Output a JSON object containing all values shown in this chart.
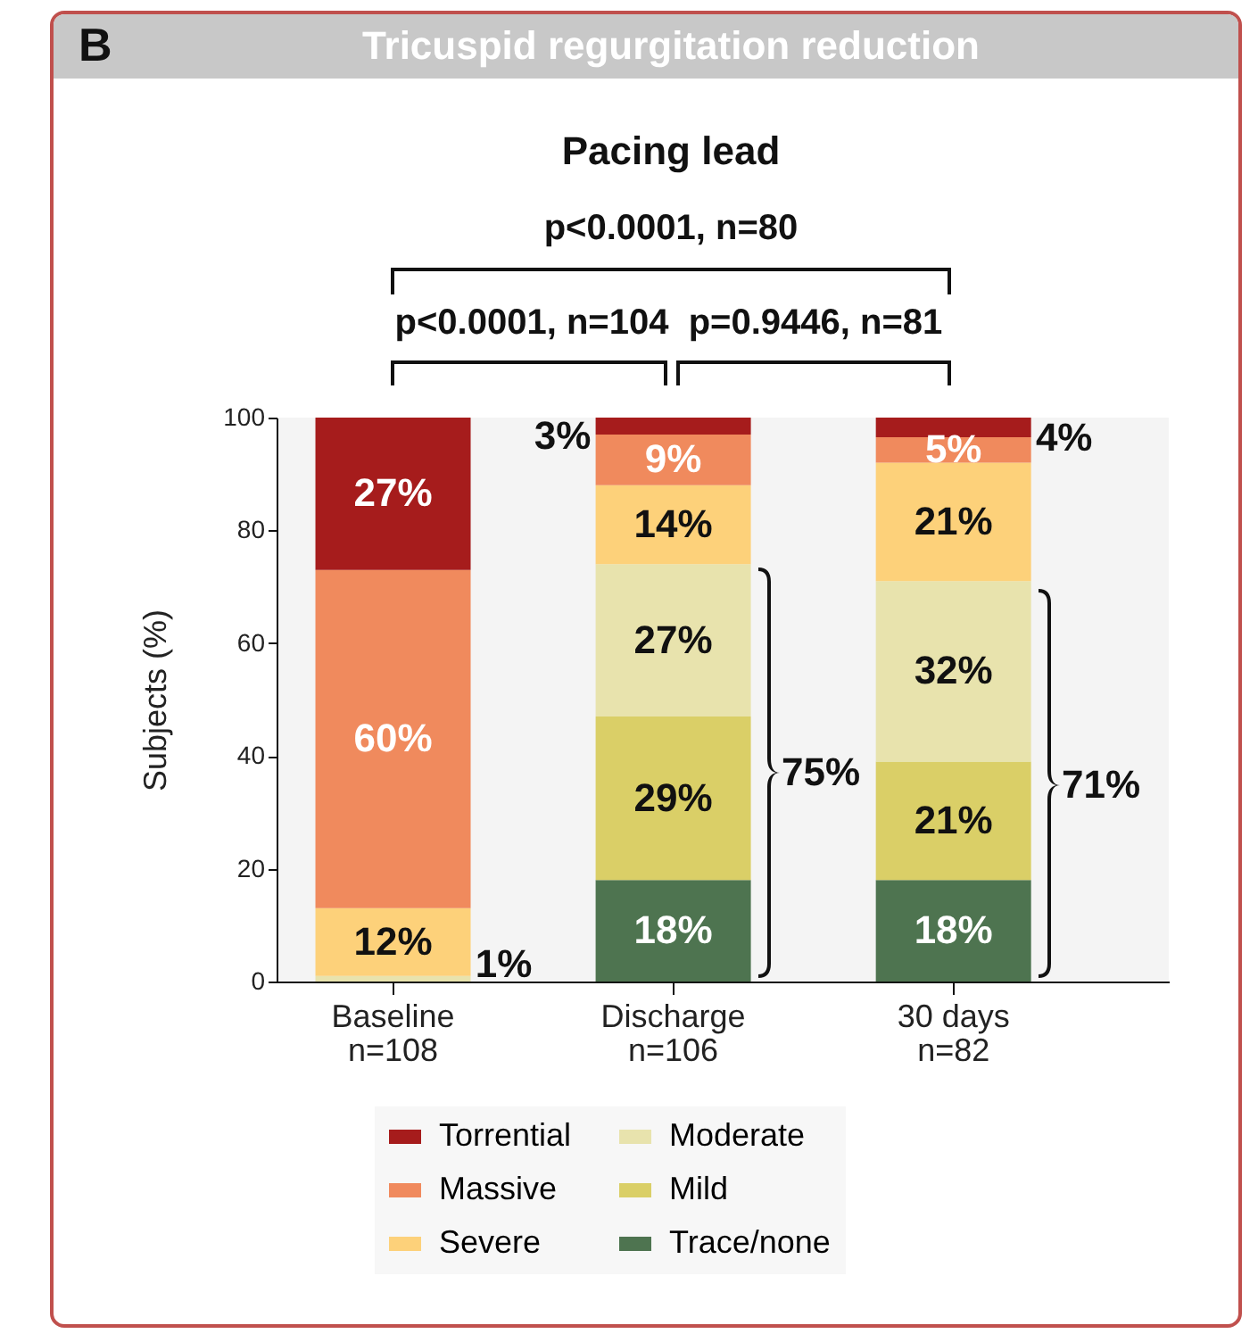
{
  "chart_data": {
    "type": "bar",
    "title": "Tricuspid regurgitation reduction",
    "subtitle": "Pacing lead",
    "ylabel": "Subjects (%)",
    "categories": [
      "Baseline\nn=108",
      "Discharge\nn=106",
      "30 days\nn=82"
    ],
    "stacked": true,
    "ylim": [
      0,
      100
    ],
    "yticks": [
      0,
      20,
      40,
      60,
      80,
      100
    ],
    "grid": false,
    "legend": "bottom",
    "series": [
      {
        "name": "Trace/none",
        "color": "#4e7450",
        "values": [
          0,
          18,
          18
        ],
        "value_labels": [
          null,
          "18%",
          "18%"
        ]
      },
      {
        "name": "Mild",
        "color": "#dacf67",
        "values": [
          0,
          29,
          21
        ],
        "value_labels": [
          null,
          "29%",
          "21%"
        ]
      },
      {
        "name": "Moderate",
        "color": "#e8e3ad",
        "values": [
          1,
          27,
          32
        ],
        "value_labels": [
          "1%",
          "27%",
          "32%"
        ]
      },
      {
        "name": "Severe",
        "color": "#fdd17a",
        "values": [
          12,
          14,
          21
        ],
        "value_labels": [
          "12%",
          "14%",
          "21%"
        ]
      },
      {
        "name": "Massive",
        "color": "#f08a5d",
        "values": [
          60,
          9,
          4.5
        ],
        "value_labels": [
          "60%",
          "9%",
          "5%"
        ]
      },
      {
        "name": "Torrential",
        "color": "#a61c1c",
        "values": [
          27,
          3,
          3.5
        ],
        "value_labels": [
          "27%",
          "3%",
          "4%"
        ]
      }
    ],
    "annotations": [
      "B",
      "p<0.0001, n=80",
      "p<0.0001, n=104",
      "p=0.9446, n=81",
      "75%",
      "71%"
    ]
  }
}
